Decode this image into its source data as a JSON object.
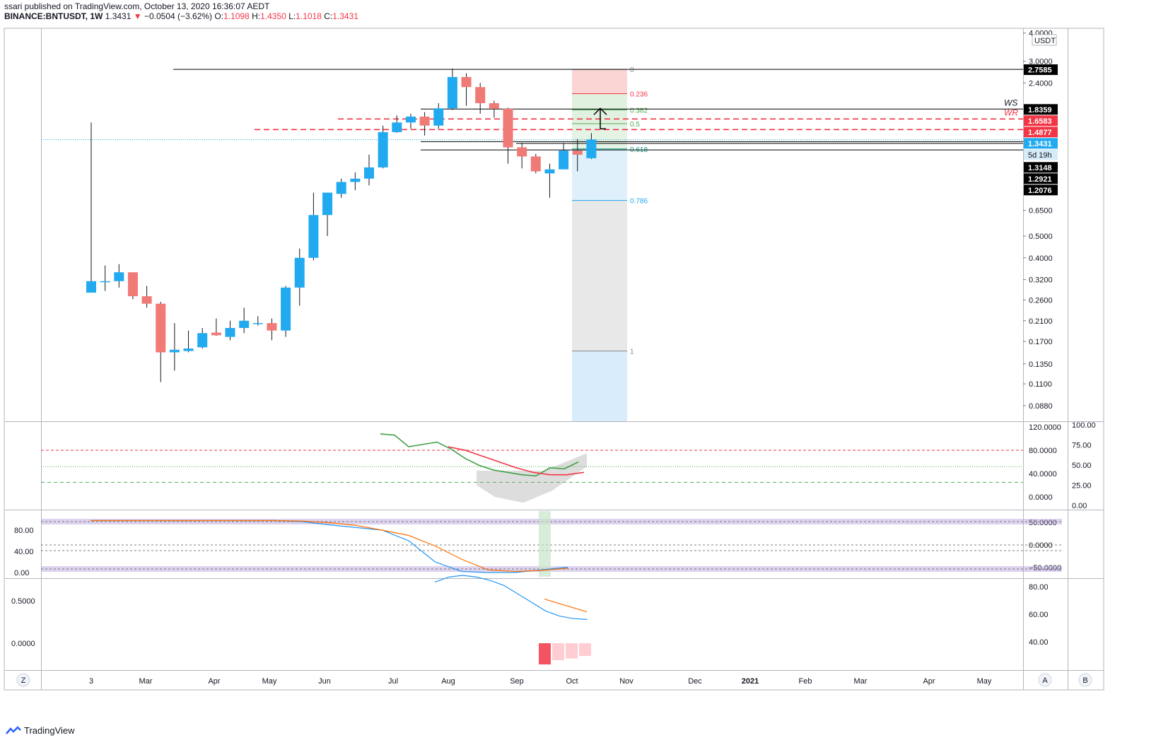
{
  "header": {
    "line1": "ssari published on TradingView.com, October 13, 2020 16:36:07 AEDT",
    "symbol": "BINANCE:BNTUSDT, 1W",
    "last": "1.3431",
    "change": "−0.0504 (−3.62%)",
    "o_label": "O:",
    "o": "1.1098",
    "h_label": "H:",
    "h": "1.4350",
    "l_label": "L:",
    "l": "1.1018",
    "c_label": "C:",
    "c": "1.3431"
  },
  "footer": {
    "brand": "TradingView"
  },
  "scale_buttons": {
    "left": "Z",
    "auto": "A",
    "b": "B"
  },
  "currency": "USDT",
  "colors": {
    "up": "#22aaf0",
    "down": "#ef7a76",
    "grid": "#e0e3eb",
    "axis": "#787b86"
  },
  "chart_data": [
    {
      "type": "candlestick",
      "title": "BINANCE:BNTUSDT, 1W",
      "scale": "log",
      "ylim": [
        0.075,
        4.2
      ],
      "x_ticks": [
        "3",
        "Mar",
        "Apr",
        "May",
        "Jun",
        "Jul",
        "Aug",
        "Sep",
        "Oct",
        "Nov",
        "Dec",
        "2021",
        "Feb",
        "Mar",
        "Apr",
        "May"
      ],
      "y_ticks": [
        "4.0000",
        "3.0000",
        "2.4000",
        "0.6500",
        "0.5000",
        "0.4000",
        "0.3200",
        "0.2600",
        "0.2100",
        "0.1700",
        "0.1350",
        "0.1100",
        "0.0880"
      ],
      "candles": [
        {
          "o": 0.28,
          "h": 1.6,
          "l": 0.28,
          "c": 0.315
        },
        {
          "o": 0.315,
          "h": 0.37,
          "l": 0.285,
          "c": 0.315
        },
        {
          "o": 0.315,
          "h": 0.375,
          "l": 0.295,
          "c": 0.345
        },
        {
          "o": 0.345,
          "h": 0.34,
          "l": 0.262,
          "c": 0.27
        },
        {
          "o": 0.27,
          "h": 0.3,
          "l": 0.24,
          "c": 0.25
        },
        {
          "o": 0.25,
          "h": 0.255,
          "l": 0.112,
          "c": 0.152
        },
        {
          "o": 0.152,
          "h": 0.205,
          "l": 0.126,
          "c": 0.156
        },
        {
          "o": 0.154,
          "h": 0.19,
          "l": 0.152,
          "c": 0.158
        },
        {
          "o": 0.16,
          "h": 0.195,
          "l": 0.158,
          "c": 0.185
        },
        {
          "o": 0.186,
          "h": 0.215,
          "l": 0.18,
          "c": 0.181
        },
        {
          "o": 0.178,
          "h": 0.21,
          "l": 0.172,
          "c": 0.195
        },
        {
          "o": 0.195,
          "h": 0.24,
          "l": 0.185,
          "c": 0.21
        },
        {
          "o": 0.205,
          "h": 0.22,
          "l": 0.2,
          "c": 0.205
        },
        {
          "o": 0.205,
          "h": 0.215,
          "l": 0.172,
          "c": 0.19
        },
        {
          "o": 0.19,
          "h": 0.3,
          "l": 0.178,
          "c": 0.295
        },
        {
          "o": 0.295,
          "h": 0.44,
          "l": 0.245,
          "c": 0.4
        },
        {
          "o": 0.4,
          "h": 0.78,
          "l": 0.39,
          "c": 0.62
        },
        {
          "o": 0.62,
          "h": 0.78,
          "l": 0.5,
          "c": 0.78
        },
        {
          "o": 0.77,
          "h": 0.9,
          "l": 0.74,
          "c": 0.87
        },
        {
          "o": 0.87,
          "h": 0.96,
          "l": 0.8,
          "c": 0.9
        },
        {
          "o": 0.9,
          "h": 1.15,
          "l": 0.84,
          "c": 1.01
        },
        {
          "o": 1.01,
          "h": 1.55,
          "l": 1.0,
          "c": 1.45
        },
        {
          "o": 1.45,
          "h": 1.72,
          "l": 1.44,
          "c": 1.6
        },
        {
          "o": 1.6,
          "h": 1.75,
          "l": 1.5,
          "c": 1.7
        },
        {
          "o": 1.7,
          "h": 1.78,
          "l": 1.4,
          "c": 1.55
        },
        {
          "o": 1.55,
          "h": 1.95,
          "l": 1.5,
          "c": 1.85
        },
        {
          "o": 1.85,
          "h": 2.78,
          "l": 1.82,
          "c": 2.55
        },
        {
          "o": 2.55,
          "h": 2.65,
          "l": 1.9,
          "c": 2.3
        },
        {
          "o": 2.3,
          "h": 2.4,
          "l": 1.75,
          "c": 1.95
        },
        {
          "o": 1.95,
          "h": 2.0,
          "l": 1.68,
          "c": 1.84
        },
        {
          "o": 1.84,
          "h": 1.86,
          "l": 1.05,
          "c": 1.24
        },
        {
          "o": 1.24,
          "h": 1.3,
          "l": 1.0,
          "c": 1.13
        },
        {
          "o": 1.13,
          "h": 1.16,
          "l": 0.95,
          "c": 0.97
        },
        {
          "o": 0.95,
          "h": 1.05,
          "l": 0.74,
          "c": 0.99
        },
        {
          "o": 0.99,
          "h": 1.3,
          "l": 0.99,
          "c": 1.2
        },
        {
          "o": 1.2,
          "h": 1.35,
          "l": 0.97,
          "c": 1.15
        },
        {
          "o": 1.1098,
          "h": 1.435,
          "l": 1.1018,
          "c": 1.3431
        }
      ],
      "horizontal_levels": [
        {
          "price": 2.7585,
          "label": "2.7585",
          "style": "solid",
          "color": "#000000"
        },
        {
          "price": 1.8359,
          "label": "1.8359",
          "style": "solid",
          "color": "#000000"
        },
        {
          "price": 1.6583,
          "label": "1.6583",
          "style": "dashed",
          "color": "#f23645"
        },
        {
          "price": 1.4877,
          "label": "1.4877",
          "style": "dashed",
          "color": "#f23645"
        },
        {
          "price": 1.3431,
          "label": "1.3431",
          "style": "dotted",
          "color": "#22aaf0"
        },
        {
          "price": 1.3148,
          "label": "1.3148",
          "style": "solid",
          "color": "#000000"
        },
        {
          "price": 1.2921,
          "label": "1.2921",
          "style": "solid",
          "color": "#000000"
        },
        {
          "price": 1.2076,
          "label": "1.2076",
          "style": "solid",
          "color": "#000000"
        }
      ],
      "countdown": "5d 19h",
      "zone_labels": [
        "WS",
        "WR"
      ],
      "fibonacci": {
        "levels": [
          {
            "ratio": "0",
            "price": 2.7585
          },
          {
            "ratio": "0.236",
            "price": 2.15
          },
          {
            "ratio": "0.382",
            "price": 1.82
          },
          {
            "ratio": "0.5",
            "price": 1.58
          },
          {
            "ratio": "0.618",
            "price": 1.22
          },
          {
            "ratio": "0.786",
            "price": 0.72
          },
          {
            "ratio": "1",
            "price": 0.154
          }
        ]
      }
    },
    {
      "type": "line",
      "title": "",
      "y_ticks_inner": [
        "120.0000",
        "80.0000",
        "40.0000",
        "0.0000"
      ],
      "y_ticks_outer": [
        "100.00",
        "75.00",
        "50.00",
        "25.00",
        "0.00"
      ],
      "series": [
        {
          "values": [
            118,
            116,
            96,
            100,
            104,
            92,
            76,
            64,
            56,
            52,
            48,
            46,
            60,
            58,
            70
          ]
        },
        {
          "values": [
            106,
            100,
            90,
            80,
            70,
            62,
            58,
            58,
            62
          ]
        }
      ]
    },
    {
      "type": "line",
      "title": "",
      "y_ticks_left": [
        "80.00",
        "40.00",
        "0.00"
      ],
      "y_ticks_right": [
        "50.0000",
        "0.0000",
        "−50.0000"
      ],
      "series": [
        {
          "values": [
            98,
            98,
            98,
            98,
            98,
            98,
            98,
            98,
            96,
            90,
            85,
            80,
            60,
            20,
            2,
            0,
            0,
            5,
            10
          ]
        },
        {
          "values": [
            98,
            98,
            98,
            98,
            98,
            98,
            98,
            98,
            97,
            94,
            89,
            80,
            70,
            50,
            25,
            5,
            2,
            4,
            8
          ]
        }
      ]
    },
    {
      "type": "line",
      "title": "",
      "y_ticks_left": [
        "0.5000",
        "0.0000"
      ],
      "y_ticks_right": [
        "80.00",
        "60.00",
        "40.00"
      ],
      "series": [
        {
          "values": [
            0.72,
            0.78,
            0.8,
            0.78,
            0.74,
            0.68,
            0.58,
            0.48,
            0.38,
            0.32,
            0.29,
            0.28
          ]
        },
        {
          "values": [
            0.52,
            0.47,
            0.42,
            0.37
          ]
        }
      ],
      "histogram": [
        -0.25,
        -0.2,
        -0.18,
        -0.15
      ]
    }
  ]
}
